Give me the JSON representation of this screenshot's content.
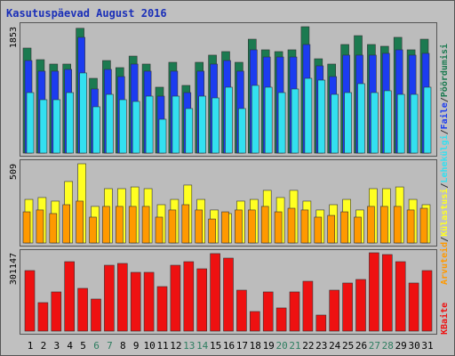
{
  "title": "Kasutuspäevad August 2016",
  "legend_separator": "/",
  "chart_data": [
    {
      "type": "bar",
      "ylim": [
        0,
        1853
      ],
      "yticks": [
        1853
      ],
      "series": [
        {
          "name": "Pöördumisi",
          "color": "#1b7a50",
          "values": [
            1540,
            1370,
            1305,
            1305,
            1830,
            1096,
            1357,
            1253,
            1422,
            1305,
            966,
            1331,
            992,
            1331,
            1436,
            1488,
            1331,
            1670,
            1514,
            1488,
            1514,
            1853,
            1383,
            1305,
            1592,
            1722,
            1592,
            1566,
            1697,
            1514,
            1670
          ]
        },
        {
          "name": "Faile",
          "color": "#1c3cf0",
          "values": [
            1357,
            1201,
            1201,
            1227,
            1697,
            940,
            1227,
            1122,
            1305,
            1201,
            835,
            1201,
            887,
            1201,
            1305,
            1357,
            1201,
            1514,
            1409,
            1409,
            1409,
            1592,
            1279,
            1122,
            1436,
            1436,
            1436,
            1462,
            1514,
            1436,
            1462
          ]
        },
        {
          "name": "Lehekülgi",
          "color": "#33e0f0",
          "values": [
            887,
            783,
            783,
            887,
            1175,
            679,
            861,
            783,
            757,
            835,
            496,
            835,
            653,
            835,
            809,
            966,
            653,
            992,
            966,
            887,
            940,
            1096,
            1070,
            861,
            887,
            1018,
            887,
            914,
            861,
            861,
            966
          ]
        }
      ]
    },
    {
      "type": "bar",
      "ylim": [
        0,
        509
      ],
      "yticks": [
        509
      ],
      "series": [
        {
          "name": "Külastusi",
          "color": "#ffff22",
          "values": [
            280,
            292,
            269,
            395,
            509,
            235,
            349,
            349,
            360,
            349,
            246,
            280,
            372,
            280,
            212,
            189,
            269,
            280,
            338,
            292,
            338,
            269,
            212,
            246,
            280,
            212,
            349,
            349,
            360,
            280,
            246
          ]
        },
        {
          "name": "Arvuteid",
          "color": "#ff9900",
          "values": [
            200,
            212,
            189,
            246,
            269,
            166,
            235,
            235,
            235,
            235,
            166,
            212,
            246,
            212,
            154,
            200,
            212,
            212,
            235,
            200,
            223,
            212,
            166,
            177,
            200,
            166,
            235,
            235,
            235,
            212,
            223
          ]
        }
      ]
    },
    {
      "type": "bar",
      "ylim": [
        0,
        301147
      ],
      "yticks": [
        301147
      ],
      "categories": [
        "1",
        "2",
        "3",
        "4",
        "5",
        "6",
        "7",
        "8",
        "9",
        "10",
        "11",
        "12",
        "13",
        "14",
        "15",
        "16",
        "17",
        "18",
        "19",
        "20",
        "21",
        "22",
        "23",
        "24",
        "25",
        "26",
        "27",
        "28",
        "29",
        "30",
        "31"
      ],
      "category_colors": [
        "#000000",
        "#000000",
        "#000000",
        "#000000",
        "#000000",
        "#2e7d60",
        "#2e7d60",
        "#000000",
        "#000000",
        "#000000",
        "#000000",
        "#000000",
        "#2e7d60",
        "#2e7d60",
        "#000000",
        "#000000",
        "#000000",
        "#000000",
        "#000000",
        "#2e7d60",
        "#2e7d60",
        "#000000",
        "#000000",
        "#000000",
        "#000000",
        "#000000",
        "#2e7d60",
        "#2e7d60",
        "#000000",
        "#000000",
        "#000000"
      ],
      "series": [
        {
          "name": "KBaite",
          "color": "#ee1111",
          "values": [
            232700,
            109500,
            150600,
            266900,
            164300,
            123200,
            253200,
            260100,
            225900,
            225900,
            171100,
            253200,
            266900,
            239500,
            298000,
            280600,
            157400,
            75300,
            150600,
            89000,
            150600,
            191600,
            61600,
            157400,
            184800,
            198500,
            301147,
            294300,
            266900,
            184800,
            232700
          ]
        }
      ]
    }
  ]
}
